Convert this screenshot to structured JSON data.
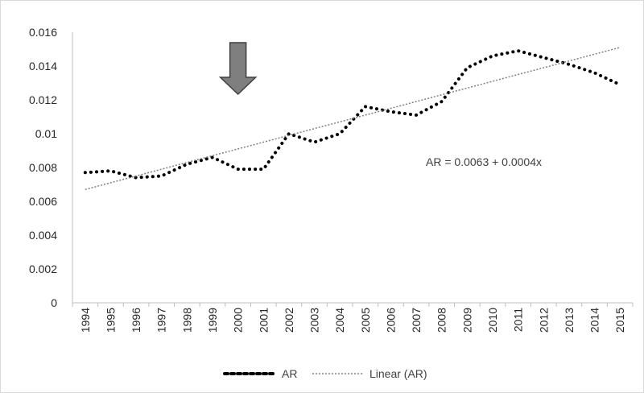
{
  "chart_data": {
    "type": "line",
    "title": "",
    "xlabel": "",
    "ylabel": "",
    "x": [
      "1994",
      "1995",
      "1996",
      "1997",
      "1998",
      "1999",
      "2000",
      "2001",
      "2002",
      "2003",
      "2004",
      "2005",
      "2006",
      "2007",
      "2008",
      "2009",
      "2010",
      "2011",
      "2012",
      "2013",
      "2014",
      "2015"
    ],
    "ylim": [
      0,
      0.016
    ],
    "yticks": [
      "0",
      "0.002",
      "0.004",
      "0.006",
      "0.008",
      "0.01",
      "0.012",
      "0.014",
      "0.016"
    ],
    "grid": false,
    "series": [
      {
        "name": "AR",
        "style": "dotted-thick",
        "color": "#000000",
        "values": [
          0.0077,
          0.0078,
          0.0074,
          0.0075,
          0.0082,
          0.0086,
          0.0079,
          0.0079,
          0.01,
          0.0095,
          0.01,
          0.0116,
          0.0113,
          0.0111,
          0.0119,
          0.0139,
          0.0146,
          0.0149,
          0.0145,
          0.0141,
          0.0136,
          0.0129
        ]
      },
      {
        "name": "Linear (AR)",
        "style": "dotted-thin",
        "color": "#808080",
        "values": [
          0.0067,
          0.0071,
          0.0075,
          0.0079,
          0.0083,
          0.0087,
          0.0091,
          0.0095,
          0.0099,
          0.0103,
          0.0107,
          0.0111,
          0.0115,
          0.0119,
          0.0123,
          0.0127,
          0.0131,
          0.0135,
          0.0139,
          0.0143,
          0.0147,
          0.0151
        ]
      }
    ],
    "annotations": [
      {
        "text": "AR = 0.0063 + 0.0004x"
      }
    ],
    "marker": {
      "type": "down-arrow",
      "at_x": "2000",
      "color": "#7f7f7f"
    },
    "legend": {
      "position": "bottom",
      "items": [
        "AR",
        "Linear (AR)"
      ]
    }
  }
}
